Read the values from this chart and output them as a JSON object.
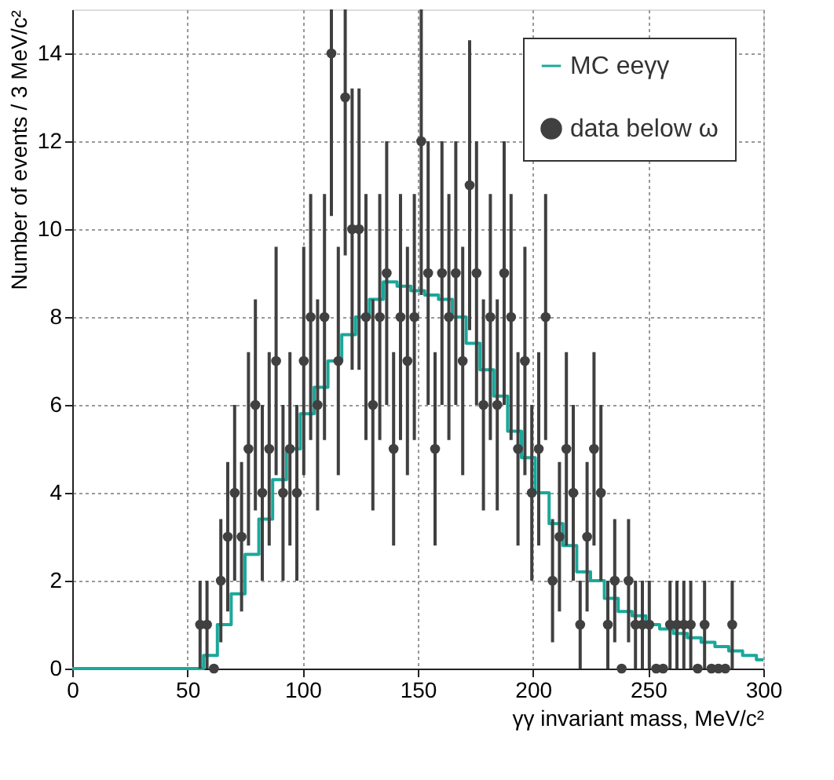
{
  "chart_data": {
    "type": "scatter",
    "xlabel": "γγ invariant mass, MeV/c²",
    "ylabel": "Number of events / 3 MeV/c²",
    "xlim": [
      0,
      300
    ],
    "xticks": [
      0,
      50,
      100,
      150,
      200,
      250,
      300
    ],
    "ylim": [
      0,
      15
    ],
    "yticks": [
      0,
      2,
      4,
      6,
      8,
      10,
      12,
      14
    ],
    "grid": true,
    "legend": "top right",
    "series": [
      {
        "name": "MC eeγγ",
        "type": "step",
        "color": "#1aa89a",
        "line_style": "solid",
        "x": [
          0,
          54,
          60,
          66,
          72,
          78,
          84,
          90,
          96,
          102,
          108,
          114,
          120,
          126,
          132,
          138,
          144,
          150,
          156,
          162,
          168,
          174,
          180,
          186,
          192,
          198,
          204,
          210,
          216,
          222,
          228,
          234,
          240,
          246,
          252,
          258,
          264,
          270,
          276,
          282,
          288,
          294,
          300
        ],
        "values": [
          0,
          0,
          0.3,
          1,
          1.7,
          2.6,
          3.4,
          4.3,
          5,
          5.8,
          6.4,
          7,
          7.6,
          8,
          8.4,
          8.8,
          8.7,
          8.6,
          8.5,
          8.4,
          8,
          7.4,
          6.8,
          6.2,
          5.4,
          4.8,
          4,
          3.3,
          2.8,
          2.2,
          2,
          1.6,
          1.3,
          1.2,
          1,
          0.9,
          0.8,
          0.7,
          0.6,
          0.5,
          0.4,
          0.3,
          0.2
        ]
      },
      {
        "name": "data below ω",
        "color": "#404040",
        "marker": "circle",
        "x": [
          55.5,
          58.5,
          61.5,
          64.5,
          67.5,
          70.5,
          73.5,
          76.5,
          79.5,
          82.5,
          85.5,
          88.5,
          91.5,
          94.5,
          97.5,
          100.5,
          103.5,
          106.5,
          109.5,
          112.5,
          115.5,
          118.5,
          121.5,
          124.5,
          127.5,
          130.5,
          133.5,
          136.5,
          139.5,
          142.5,
          145.5,
          148.5,
          151.5,
          154.5,
          157.5,
          160.5,
          163.5,
          166.5,
          169.5,
          172.5,
          175.5,
          178.5,
          181.5,
          184.5,
          187.5,
          190.5,
          193.5,
          196.5,
          199.5,
          202.5,
          205.5,
          208.5,
          211.5,
          214.5,
          217.5,
          220.5,
          223.5,
          226.5,
          229.5,
          232.5,
          235.5,
          238.5,
          241.5,
          244.5,
          247.5,
          250.5,
          253.5,
          256.5,
          259.5,
          262.5,
          265.5,
          268.5,
          271.5,
          274.5,
          277.5,
          280.5,
          283.5,
          286.5
        ],
        "values": [
          1,
          1,
          0,
          2,
          3,
          4,
          3,
          5,
          6,
          4,
          5,
          7,
          4,
          5,
          4,
          7,
          8,
          6,
          8,
          14,
          7,
          13,
          10,
          10,
          8,
          6,
          8,
          9,
          5,
          8,
          7,
          8,
          12,
          9,
          5,
          9,
          8,
          9,
          7,
          11,
          9,
          6,
          8,
          6,
          9,
          8,
          5,
          7,
          4,
          5,
          8,
          2,
          3,
          5,
          4,
          1,
          3,
          5,
          4,
          1,
          2,
          0,
          2,
          1,
          1,
          1,
          0,
          0,
          1,
          1,
          1,
          1,
          0,
          1,
          0,
          0,
          0,
          1
        ],
        "errors": [
          1,
          1,
          null,
          1.4,
          1.7,
          2,
          1.7,
          2.2,
          2.4,
          2,
          2.2,
          2.6,
          2,
          2.2,
          2,
          2.6,
          2.8,
          2.4,
          2.8,
          [
            10.3,
            15
          ],
          2.6,
          [
            9.4,
            15
          ],
          3.2,
          3.2,
          2.8,
          2.4,
          2.8,
          3,
          2.2,
          2.8,
          2.6,
          2.8,
          [
            8.5,
            15
          ],
          3,
          2.2,
          3,
          2.8,
          3,
          2.6,
          3.3,
          3,
          2.4,
          2.8,
          2.4,
          3,
          2.8,
          2.2,
          2.6,
          2,
          2.2,
          2.8,
          1.4,
          1.7,
          2.2,
          2,
          1,
          1.7,
          2.2,
          2,
          1,
          1.4,
          null,
          1.4,
          1,
          1,
          1,
          null,
          null,
          1,
          1,
          1,
          1,
          null,
          1,
          null,
          null,
          null,
          1
        ]
      }
    ]
  }
}
